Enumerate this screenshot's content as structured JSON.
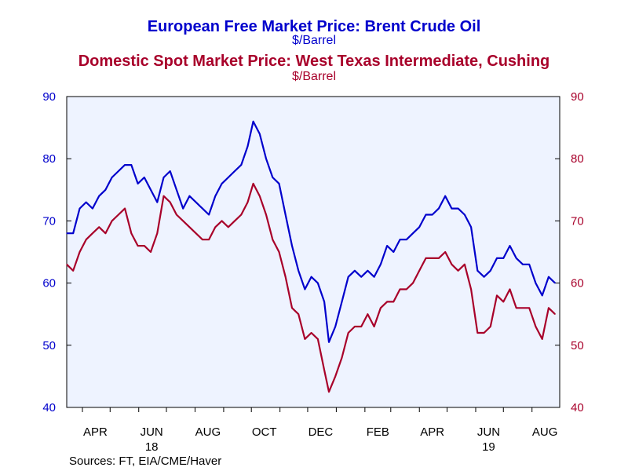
{
  "title_main": "European Free Market Price: Brent Crude Oil",
  "units_main": "$/Barrel",
  "title_second": "Domestic Spot Market Price: West Texas Intermediate, Cushing",
  "units_second": "$/Barrel",
  "source": "Sources:  FT, EIA/CME/Haver",
  "colors": {
    "brent": "#0000cc",
    "wti": "#a8002a",
    "plot_bg": "#eef3ff",
    "axis": "#000000"
  },
  "chart_data": {
    "type": "line",
    "title": "European Free Market Price: Brent Crude Oil / Domestic Spot Market Price: West Texas Intermediate, Cushing",
    "xlabel": "",
    "ylabel_left": "$/Barrel",
    "ylabel_right": "$/Barrel",
    "ylim": [
      40,
      90
    ],
    "yticks": [
      40,
      50,
      60,
      70,
      80,
      90
    ],
    "xlim": [
      "2018-03-15",
      "2019-08-31"
    ],
    "x_ticks": [
      {
        "label": "APR",
        "date": "2018-04-15"
      },
      {
        "label": "JUN",
        "date": "2018-06-15"
      },
      {
        "label": "AUG",
        "date": "2018-08-15"
      },
      {
        "label": "OCT",
        "date": "2018-10-15"
      },
      {
        "label": "DEC",
        "date": "2018-12-15"
      },
      {
        "label": "FEB",
        "date": "2019-02-15"
      },
      {
        "label": "APR",
        "date": "2019-04-15"
      },
      {
        "label": "JUN",
        "date": "2019-06-15"
      },
      {
        "label": "AUG",
        "date": "2019-08-15"
      }
    ],
    "year_labels": [
      {
        "label": "18",
        "date": "2018-06-15"
      },
      {
        "label": "19",
        "date": "2019-06-15"
      }
    ],
    "grid": false,
    "legend": "none",
    "series": [
      {
        "axis": "left",
        "x": [
          "2018-03-15",
          "2018-03-22",
          "2018-03-29",
          "2018-04-05",
          "2018-04-12",
          "2018-04-19",
          "2018-04-26",
          "2018-05-03",
          "2018-05-10",
          "2018-05-17",
          "2018-05-24",
          "2018-05-31",
          "2018-06-07",
          "2018-06-14",
          "2018-06-21",
          "2018-06-28",
          "2018-07-05",
          "2018-07-12",
          "2018-07-19",
          "2018-07-26",
          "2018-08-02",
          "2018-08-09",
          "2018-08-16",
          "2018-08-23",
          "2018-08-30",
          "2018-09-06",
          "2018-09-13",
          "2018-09-20",
          "2018-09-27",
          "2018-10-03",
          "2018-10-10",
          "2018-10-17",
          "2018-10-24",
          "2018-10-31",
          "2018-11-07",
          "2018-11-14",
          "2018-11-21",
          "2018-11-28",
          "2018-12-05",
          "2018-12-12",
          "2018-12-19",
          "2018-12-24",
          "2018-12-31",
          "2019-01-07",
          "2019-01-14",
          "2019-01-21",
          "2019-01-28",
          "2019-02-04",
          "2019-02-11",
          "2019-02-18",
          "2019-02-25",
          "2019-03-04",
          "2019-03-11",
          "2019-03-18",
          "2019-03-25",
          "2019-04-01",
          "2019-04-08",
          "2019-04-15",
          "2019-04-22",
          "2019-04-29",
          "2019-05-06",
          "2019-05-13",
          "2019-05-20",
          "2019-05-27",
          "2019-06-03",
          "2019-06-10",
          "2019-06-17",
          "2019-06-24",
          "2019-07-01",
          "2019-07-08",
          "2019-07-15",
          "2019-07-22",
          "2019-07-29",
          "2019-08-05",
          "2019-08-12",
          "2019-08-19",
          "2019-08-26"
        ],
        "values": [
          68,
          68,
          72,
          73,
          72,
          74,
          75,
          77,
          78,
          79,
          79,
          76,
          77,
          75,
          73,
          77,
          78,
          75,
          72,
          74,
          73,
          72,
          71,
          74,
          76,
          77,
          78,
          79,
          82,
          86,
          84,
          80,
          77,
          76,
          71,
          66,
          62,
          59,
          61,
          60,
          57,
          50.5,
          53,
          57,
          61,
          62,
          61,
          62,
          61,
          63,
          66,
          65,
          67,
          67,
          68,
          69,
          71,
          71,
          72,
          74,
          72,
          72,
          71,
          69,
          62,
          61,
          62,
          64,
          64,
          66,
          64,
          63,
          63,
          60,
          58,
          61,
          60
        ]
      },
      {
        "axis": "right",
        "x": [
          "2018-03-15",
          "2018-03-22",
          "2018-03-29",
          "2018-04-05",
          "2018-04-12",
          "2018-04-19",
          "2018-04-26",
          "2018-05-03",
          "2018-05-10",
          "2018-05-17",
          "2018-05-24",
          "2018-05-31",
          "2018-06-07",
          "2018-06-14",
          "2018-06-21",
          "2018-06-28",
          "2018-07-05",
          "2018-07-12",
          "2018-07-19",
          "2018-07-26",
          "2018-08-02",
          "2018-08-09",
          "2018-08-16",
          "2018-08-23",
          "2018-08-30",
          "2018-09-06",
          "2018-09-13",
          "2018-09-20",
          "2018-09-27",
          "2018-10-03",
          "2018-10-10",
          "2018-10-17",
          "2018-10-24",
          "2018-10-31",
          "2018-11-07",
          "2018-11-14",
          "2018-11-21",
          "2018-11-28",
          "2018-12-05",
          "2018-12-12",
          "2018-12-19",
          "2018-12-24",
          "2018-12-31",
          "2019-01-07",
          "2019-01-14",
          "2019-01-21",
          "2019-01-28",
          "2019-02-04",
          "2019-02-11",
          "2019-02-18",
          "2019-02-25",
          "2019-03-04",
          "2019-03-11",
          "2019-03-18",
          "2019-03-25",
          "2019-04-01",
          "2019-04-08",
          "2019-04-15",
          "2019-04-22",
          "2019-04-29",
          "2019-05-06",
          "2019-05-13",
          "2019-05-20",
          "2019-05-27",
          "2019-06-03",
          "2019-06-10",
          "2019-06-17",
          "2019-06-24",
          "2019-07-01",
          "2019-07-08",
          "2019-07-15",
          "2019-07-22",
          "2019-07-29",
          "2019-08-05",
          "2019-08-12",
          "2019-08-19",
          "2019-08-26"
        ],
        "values": [
          63,
          62,
          65,
          67,
          68,
          69,
          68,
          70,
          71,
          72,
          68,
          66,
          66,
          65,
          68,
          74,
          73,
          71,
          70,
          69,
          68,
          67,
          67,
          69,
          70,
          69,
          70,
          71,
          73,
          76,
          74,
          71,
          67,
          65,
          61,
          56,
          55,
          51,
          52,
          51,
          46,
          42.5,
          45,
          48,
          52,
          53,
          53,
          55,
          53,
          56,
          57,
          57,
          59,
          59,
          60,
          62,
          64,
          64,
          64,
          65,
          63,
          62,
          63,
          59,
          52,
          52,
          53,
          58,
          57,
          59,
          56,
          56,
          56,
          53,
          51,
          56,
          55
        ]
      }
    ]
  }
}
